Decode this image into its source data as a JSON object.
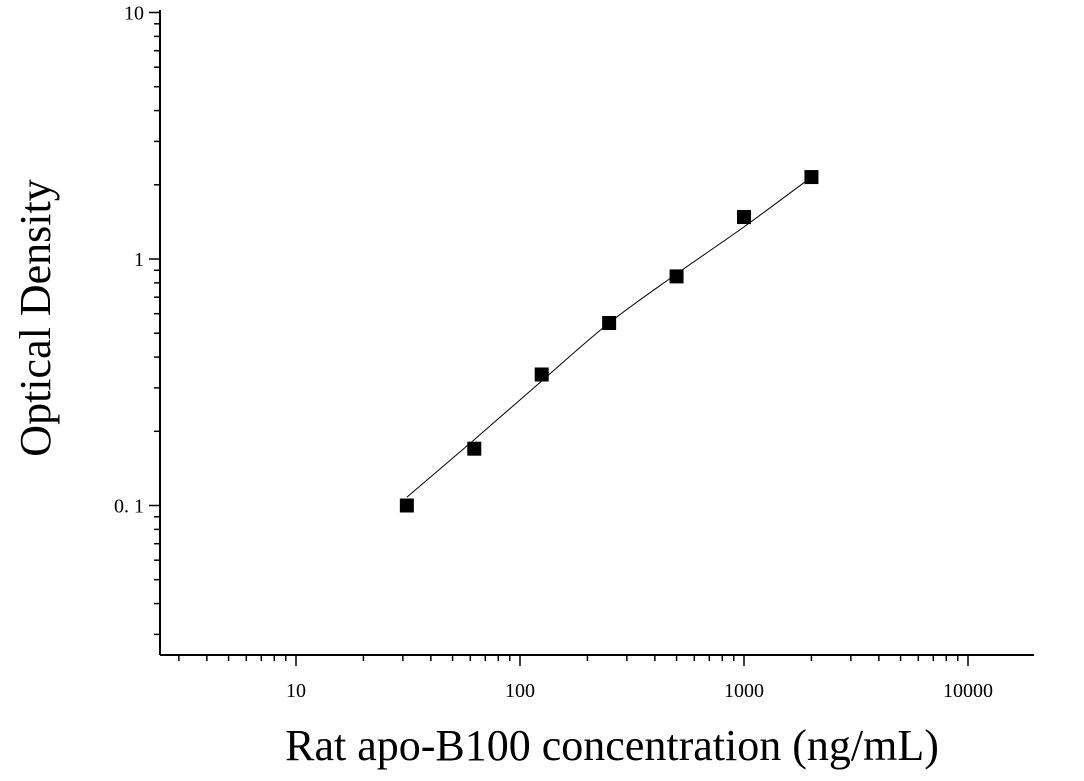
{
  "chart_data": {
    "type": "scatter",
    "title": "",
    "xlabel": "Rat apo-B100 concentration (ng/mL)",
    "ylabel": "Optical Density",
    "xscale": "log",
    "yscale": "log",
    "xlim": [
      2.5,
      20000
    ],
    "ylim": [
      0.03,
      10
    ],
    "x_ticks": [
      10,
      100,
      1000,
      10000
    ],
    "x_tick_labels": [
      "10",
      "100",
      "1000",
      "10000"
    ],
    "y_ticks": [
      0.1,
      1,
      10
    ],
    "y_tick_labels": [
      "0. 1",
      "1",
      "10"
    ],
    "grid": false,
    "legend": false,
    "series": [
      {
        "marker": "square",
        "color": "#000000",
        "x": [
          31.25,
          62.5,
          125,
          250,
          500,
          1000,
          2000
        ],
        "y": [
          0.1,
          0.17,
          0.34,
          0.55,
          0.85,
          1.48,
          2.15
        ]
      }
    ],
    "fit_curve": {
      "color": "#000000",
      "x": [
        31.25,
        62.5,
        125,
        250,
        500,
        1000,
        2000
      ],
      "y": [
        0.108,
        0.185,
        0.32,
        0.55,
        0.87,
        1.35,
        2.15
      ]
    }
  }
}
